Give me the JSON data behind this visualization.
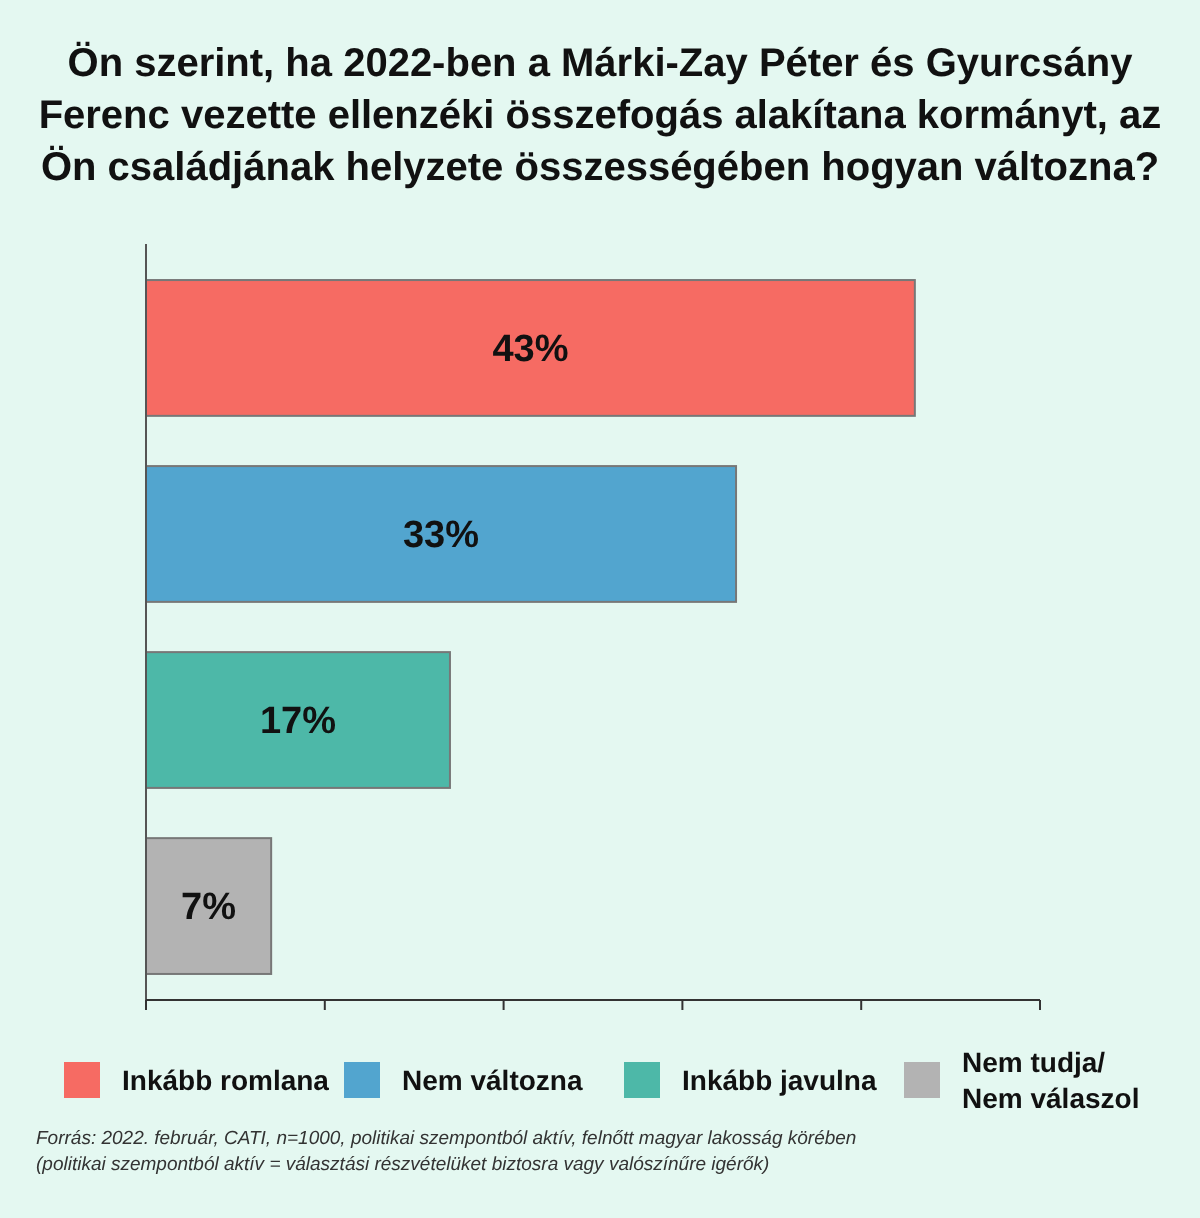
{
  "chart_data": {
    "type": "bar",
    "orientation": "horizontal",
    "title": "Ön szerint, ha 2022-ben a Márki-Zay Péter és Gyurcsány Ferenc vezette ellenzéki összefogás alakítana kormányt, az Ön családjának helyzete összességében hogyan változna?",
    "categories": [
      null,
      null,
      null,
      null
    ],
    "series": [
      {
        "name": "Inkább romlana",
        "color": "#f66b63",
        "values": [
          43,
          null,
          null,
          null
        ],
        "value_labels": [
          "43%",
          null,
          null,
          null
        ]
      },
      {
        "name": "Nem változna",
        "color": "#52a5cf",
        "values": [
          null,
          33,
          null,
          null
        ],
        "value_labels": [
          null,
          "33%",
          null,
          null
        ]
      },
      {
        "name": "Inkább javulna",
        "color": "#4db8a8",
        "values": [
          null,
          null,
          17,
          null
        ],
        "value_labels": [
          null,
          null,
          "17%",
          null
        ]
      },
      {
        "name": "Nem tudja/Nem válaszol",
        "color": "#b3b3b3",
        "values": [
          null,
          null,
          null,
          7
        ],
        "value_labels": [
          null,
          null,
          null,
          "7%"
        ]
      }
    ],
    "xlim": [
      0,
      50
    ],
    "xticks": [
      {
        "value": 0,
        "label": null
      },
      {
        "value": 10,
        "label": null
      },
      {
        "value": 20,
        "label": null
      },
      {
        "value": 30,
        "label": null
      },
      {
        "value": 40,
        "label": null
      },
      {
        "value": 50,
        "label": null
      }
    ],
    "legend": "bottom",
    "stacked": true,
    "annotations": [
      "Forrás: 2022. február, CATI, n=1000, politikai szempontból aktív, felnőtt magyar lakosság körében",
      "(politikai szempontból aktív = választási részvételüket biztosra vagy valószínűre igérők)"
    ]
  }
}
